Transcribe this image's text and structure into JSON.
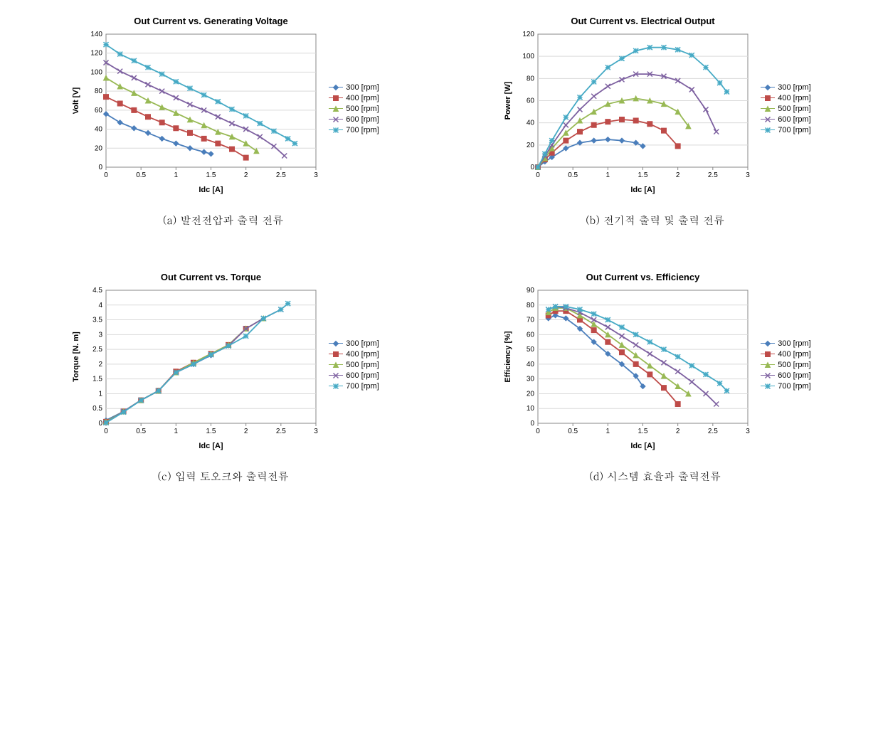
{
  "series_style": {
    "300": {
      "color": "#4a7ebb",
      "marker": "diamond"
    },
    "400": {
      "color": "#be4b48",
      "marker": "square"
    },
    "500": {
      "color": "#98b954",
      "marker": "triangle"
    },
    "600": {
      "color": "#7d60a0",
      "marker": "x"
    },
    "700": {
      "color": "#46aac5",
      "marker": "star"
    }
  },
  "legend_labels": [
    "300 [rpm]",
    "400 [rpm]",
    "500 [rpm]",
    "600 [rpm]",
    "700 [rpm]"
  ],
  "legend_keys": [
    "300",
    "400",
    "500",
    "600",
    "700"
  ],
  "plot_bg": "#ffffff",
  "plot_border": "#878787",
  "grid_color": "#d9d9d9",
  "axis_font_size": 11,
  "tick_font_size": 10,
  "title_font_size": 13,
  "charts": {
    "a": {
      "title": "Out Current vs. Generating Voltage",
      "xlabel": "Idc [A]",
      "ylabel": "Volt [V]",
      "xlim": [
        0,
        3
      ],
      "xtick_step": 0.5,
      "ylim": [
        0,
        140
      ],
      "ytick_step": 20,
      "series": {
        "300": {
          "x": [
            0,
            0.2,
            0.4,
            0.6,
            0.8,
            1.0,
            1.2,
            1.4,
            1.5
          ],
          "y": [
            56,
            47,
            41,
            36,
            30,
            25,
            20,
            16,
            14
          ]
        },
        "400": {
          "x": [
            0,
            0.2,
            0.4,
            0.6,
            0.8,
            1.0,
            1.2,
            1.4,
            1.6,
            1.8,
            2.0
          ],
          "y": [
            74,
            67,
            60,
            53,
            47,
            41,
            36,
            30,
            25,
            19,
            10
          ]
        },
        "500": {
          "x": [
            0,
            0.2,
            0.4,
            0.6,
            0.8,
            1.0,
            1.2,
            1.4,
            1.6,
            1.8,
            2.0,
            2.15
          ],
          "y": [
            94,
            85,
            78,
            70,
            63,
            57,
            50,
            44,
            37,
            32,
            25,
            17
          ]
        },
        "600": {
          "x": [
            0,
            0.2,
            0.4,
            0.6,
            0.8,
            1.0,
            1.2,
            1.4,
            1.6,
            1.8,
            2.0,
            2.2,
            2.4,
            2.55
          ],
          "y": [
            110,
            101,
            94,
            87,
            80,
            73,
            66,
            60,
            53,
            46,
            40,
            32,
            22,
            12
          ]
        },
        "700": {
          "x": [
            0,
            0.2,
            0.4,
            0.6,
            0.8,
            1.0,
            1.2,
            1.4,
            1.6,
            1.8,
            2.0,
            2.2,
            2.4,
            2.6,
            2.7
          ],
          "y": [
            129,
            119,
            112,
            105,
            98,
            90,
            83,
            76,
            69,
            61,
            54,
            46,
            38,
            30,
            25
          ]
        }
      }
    },
    "b": {
      "title": "Out Current vs. Electrical Output",
      "xlabel": "Idc [A]",
      "ylabel": "Power [W]",
      "xlim": [
        0,
        3
      ],
      "xtick_step": 0.5,
      "ylim": [
        0,
        120
      ],
      "ytick_step": 20,
      "series": {
        "300": {
          "x": [
            0,
            0.1,
            0.2,
            0.4,
            0.6,
            0.8,
            1.0,
            1.2,
            1.4,
            1.5
          ],
          "y": [
            0,
            5,
            9,
            17,
            22,
            24,
            25,
            24,
            22,
            19
          ]
        },
        "400": {
          "x": [
            0,
            0.1,
            0.2,
            0.4,
            0.6,
            0.8,
            1.0,
            1.2,
            1.4,
            1.6,
            1.8,
            2.0
          ],
          "y": [
            0,
            7,
            13,
            24,
            32,
            38,
            41,
            43,
            42,
            39,
            33,
            19
          ]
        },
        "500": {
          "x": [
            0,
            0.1,
            0.2,
            0.4,
            0.6,
            0.8,
            1.0,
            1.2,
            1.4,
            1.6,
            1.8,
            2.0,
            2.15
          ],
          "y": [
            0,
            8,
            17,
            31,
            42,
            50,
            57,
            60,
            62,
            60,
            57,
            50,
            37
          ]
        },
        "600": {
          "x": [
            0,
            0.1,
            0.2,
            0.4,
            0.6,
            0.8,
            1.0,
            1.2,
            1.4,
            1.6,
            1.8,
            2.0,
            2.2,
            2.4,
            2.55
          ],
          "y": [
            0,
            10,
            20,
            38,
            52,
            64,
            73,
            79,
            84,
            84,
            82,
            78,
            70,
            52,
            32
          ]
        },
        "700": {
          "x": [
            0,
            0.1,
            0.2,
            0.4,
            0.6,
            0.8,
            1.0,
            1.2,
            1.4,
            1.6,
            1.8,
            2.0,
            2.2,
            2.4,
            2.6,
            2.7
          ],
          "y": [
            0,
            12,
            24,
            45,
            63,
            77,
            90,
            98,
            105,
            108,
            108,
            106,
            101,
            90,
            76,
            68
          ]
        }
      }
    },
    "c": {
      "title": "Out Current vs. Torque",
      "xlabel": "Idc [A]",
      "ylabel": "Torque [N. m]",
      "xlim": [
        0,
        3
      ],
      "xtick_step": 0.5,
      "ylim": [
        0,
        4.5
      ],
      "ytick_step": 0.5,
      "series": {
        "300": {
          "x": [
            0,
            0.25,
            0.5,
            0.75,
            1.0,
            1.25,
            1.5
          ],
          "y": [
            0.1,
            0.4,
            0.78,
            1.1,
            1.72,
            2.0,
            2.3
          ]
        },
        "400": {
          "x": [
            0,
            0.25,
            0.5,
            0.75,
            1.0,
            1.25,
            1.5,
            1.75,
            2.0
          ],
          "y": [
            0.05,
            0.4,
            0.78,
            1.1,
            1.75,
            2.05,
            2.35,
            2.65,
            3.2
          ]
        },
        "500": {
          "x": [
            0,
            0.25,
            0.5,
            0.75,
            1.0,
            1.25,
            1.5,
            1.75,
            2.0,
            2.25
          ],
          "y": [
            0.05,
            0.4,
            0.78,
            1.1,
            1.72,
            2.05,
            2.35,
            2.65,
            3.2,
            3.55
          ]
        },
        "600": {
          "x": [
            0,
            0.25,
            0.5,
            0.75,
            1.0,
            1.25,
            1.5,
            1.75,
            2.0,
            2.25,
            2.5
          ],
          "y": [
            0.02,
            0.4,
            0.78,
            1.1,
            1.72,
            2.0,
            2.32,
            2.62,
            3.2,
            3.55,
            3.85
          ]
        },
        "700": {
          "x": [
            0,
            0.25,
            0.5,
            0.75,
            1.0,
            1.25,
            1.5,
            1.75,
            2.0,
            2.25,
            2.5,
            2.6
          ],
          "y": [
            0.02,
            0.38,
            0.78,
            1.1,
            1.72,
            2.0,
            2.32,
            2.62,
            2.95,
            3.55,
            3.85,
            4.05
          ]
        }
      }
    },
    "d": {
      "title": "Out Current vs. Efficiency",
      "xlabel": "Idc [A]",
      "ylabel": "Efficiency [%]",
      "xlim": [
        0,
        3
      ],
      "xtick_step": 0.5,
      "ylim": [
        0,
        90
      ],
      "ytick_step": 10,
      "series": {
        "300": {
          "x": [
            0.15,
            0.25,
            0.4,
            0.6,
            0.8,
            1.0,
            1.2,
            1.4,
            1.5
          ],
          "y": [
            71,
            73,
            71,
            64,
            55,
            47,
            40,
            32,
            25
          ]
        },
        "400": {
          "x": [
            0.15,
            0.25,
            0.4,
            0.6,
            0.8,
            1.0,
            1.2,
            1.4,
            1.6,
            1.8,
            2.0
          ],
          "y": [
            73,
            76,
            76,
            70,
            63,
            55,
            48,
            40,
            33,
            24,
            13
          ]
        },
        "500": {
          "x": [
            0.15,
            0.25,
            0.4,
            0.6,
            0.8,
            1.0,
            1.2,
            1.4,
            1.6,
            1.8,
            2.0,
            2.15
          ],
          "y": [
            75,
            78,
            78,
            73,
            67,
            60,
            53,
            46,
            39,
            32,
            25,
            20
          ]
        },
        "600": {
          "x": [
            0.15,
            0.25,
            0.4,
            0.6,
            0.8,
            1.0,
            1.2,
            1.4,
            1.6,
            1.8,
            2.0,
            2.2,
            2.4,
            2.55
          ],
          "y": [
            77,
            79,
            78,
            75,
            70,
            65,
            59,
            53,
            47,
            41,
            35,
            28,
            20,
            13
          ]
        },
        "700": {
          "x": [
            0.15,
            0.25,
            0.4,
            0.6,
            0.8,
            1.0,
            1.2,
            1.4,
            1.6,
            1.8,
            2.0,
            2.2,
            2.4,
            2.6,
            2.7
          ],
          "y": [
            77,
            79,
            79,
            77,
            74,
            70,
            65,
            60,
            55,
            50,
            45,
            39,
            33,
            27,
            22
          ]
        }
      }
    }
  },
  "captions": {
    "a": "(a) 발전전압과 출력 전류",
    "b": "(b) 전기적 출력 및 출력 전류",
    "c": "(c) 입력 토오크와 출력전류",
    "d": "(d) 시스템 효율과 출력전류"
  }
}
